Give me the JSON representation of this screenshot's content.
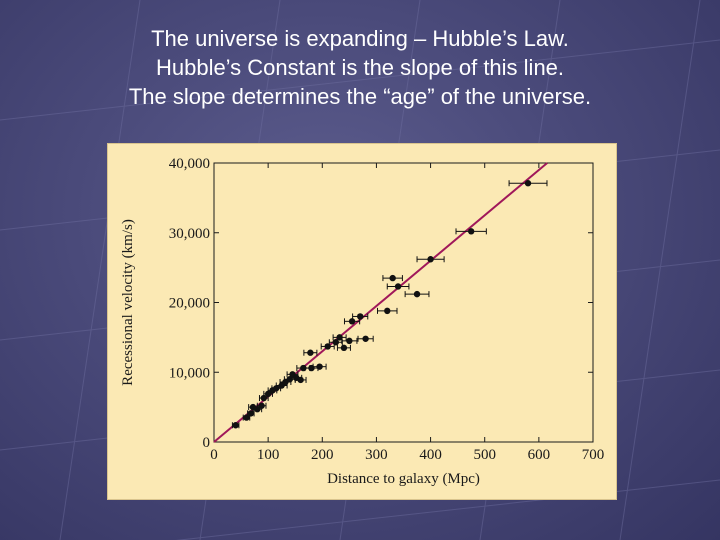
{
  "slide": {
    "title_lines": [
      "The universe is expanding – Hubble’s Law.",
      "Hubble’s Constant is the slope of this line.",
      "The slope determines the “age” of the universe."
    ]
  },
  "colors": {
    "background": "#4a4a7a",
    "chart_background": "#fbe9b4",
    "fit_line": "#a0185a",
    "points": "#111111"
  },
  "chart_data": {
    "type": "scatter",
    "title": "",
    "xlabel": "Distance to galaxy (Mpc)",
    "ylabel": "Recessional velocity (km/s)",
    "xlim": [
      0,
      700
    ],
    "ylim": [
      0,
      40000
    ],
    "x_ticks": [
      0,
      100,
      200,
      300,
      400,
      500,
      600,
      700
    ],
    "x_tick_labels": [
      "0",
      "100",
      "200",
      "300",
      "400",
      "500",
      "600",
      "700"
    ],
    "y_ticks": [
      0,
      10000,
      20000,
      30000,
      40000
    ],
    "y_tick_labels": [
      "0",
      "10,000",
      "20,000",
      "30,000",
      "40,000"
    ],
    "grid": false,
    "fit_line": {
      "slope": 65,
      "intercept": 0
    },
    "points": [
      {
        "x": 40,
        "y": 2400,
        "err": 6
      },
      {
        "x": 60,
        "y": 3500,
        "err": 6
      },
      {
        "x": 68,
        "y": 4100,
        "err": 6
      },
      {
        "x": 72,
        "y": 5000,
        "err": 8
      },
      {
        "x": 80,
        "y": 4700,
        "err": 8
      },
      {
        "x": 88,
        "y": 5200,
        "err": 8
      },
      {
        "x": 92,
        "y": 6300,
        "err": 8
      },
      {
        "x": 100,
        "y": 6900,
        "err": 8
      },
      {
        "x": 108,
        "y": 7400,
        "err": 8
      },
      {
        "x": 115,
        "y": 7700,
        "err": 8
      },
      {
        "x": 125,
        "y": 8100,
        "err": 10
      },
      {
        "x": 132,
        "y": 8600,
        "err": 10
      },
      {
        "x": 140,
        "y": 9000,
        "err": 10
      },
      {
        "x": 145,
        "y": 9700,
        "err": 10
      },
      {
        "x": 152,
        "y": 9200,
        "err": 10
      },
      {
        "x": 160,
        "y": 8900,
        "err": 10
      },
      {
        "x": 165,
        "y": 10600,
        "err": 12
      },
      {
        "x": 180,
        "y": 10600,
        "err": 12
      },
      {
        "x": 178,
        "y": 12800,
        "err": 12
      },
      {
        "x": 195,
        "y": 10800,
        "err": 12
      },
      {
        "x": 210,
        "y": 13700,
        "err": 12
      },
      {
        "x": 225,
        "y": 14300,
        "err": 12
      },
      {
        "x": 232,
        "y": 15000,
        "err": 12
      },
      {
        "x": 240,
        "y": 13500,
        "err": 12
      },
      {
        "x": 250,
        "y": 14500,
        "err": 14
      },
      {
        "x": 255,
        "y": 17300,
        "err": 14
      },
      {
        "x": 270,
        "y": 18000,
        "err": 14
      },
      {
        "x": 280,
        "y": 14800,
        "err": 14
      },
      {
        "x": 320,
        "y": 18800,
        "err": 18
      },
      {
        "x": 330,
        "y": 23500,
        "err": 18
      },
      {
        "x": 340,
        "y": 22300,
        "err": 20
      },
      {
        "x": 375,
        "y": 21200,
        "err": 22
      },
      {
        "x": 400,
        "y": 26200,
        "err": 25
      },
      {
        "x": 475,
        "y": 30200,
        "err": 28
      },
      {
        "x": 580,
        "y": 37100,
        "err": 35
      }
    ]
  }
}
